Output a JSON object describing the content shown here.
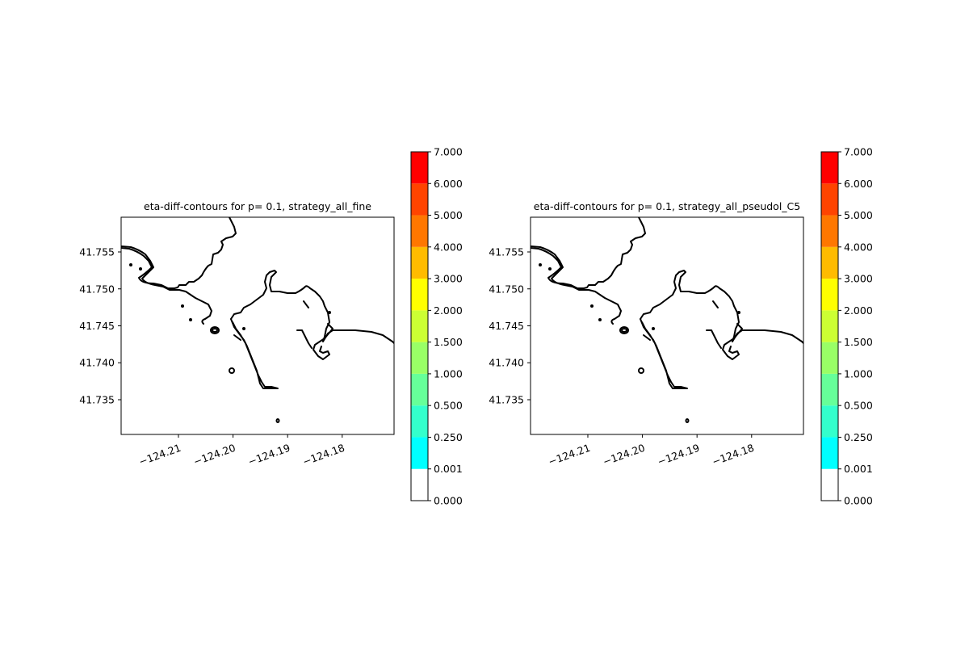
{
  "chart_data": [
    {
      "type": "contour",
      "title": "eta-diff-contours for p= 0.1, strategy_all_fine",
      "xlim": [
        -124.2205,
        -124.1705
      ],
      "ylim": [
        41.7303,
        41.7597
      ],
      "xticks": [
        -124.21,
        -124.2,
        -124.19,
        -124.18
      ],
      "xtick_labels": [
        "−124.21",
        "−124.20",
        "−124.19",
        "−124.18"
      ],
      "yticks": [
        41.735,
        41.74,
        41.745,
        41.75,
        41.755
      ],
      "ytick_labels": [
        "41.735",
        "41.740",
        "41.745",
        "41.750",
        "41.755"
      ],
      "filled_values": "none visible (all below 0.001)",
      "colorbar": {
        "levels": [
          0.0,
          0.001,
          0.25,
          0.5,
          1.0,
          1.5,
          2.0,
          3.0,
          4.0,
          5.0,
          6.0,
          7.0
        ],
        "labels": [
          "0.000",
          "0.001",
          "0.250",
          "0.500",
          "1.000",
          "1.500",
          "2.000",
          "3.000",
          "4.000",
          "5.000",
          "6.000",
          "7.000"
        ],
        "colors": [
          "#ffffff",
          "#00ffff",
          "#33ffcc",
          "#66ff99",
          "#99ff66",
          "#ccff33",
          "#ffff00",
          "#ffbb00",
          "#ff7700",
          "#ff4400",
          "#ff0000"
        ]
      }
    },
    {
      "type": "contour",
      "title": "eta-diff-contours for p= 0.1, strategy_all_pseudol_C5",
      "xlim": [
        -124.2205,
        -124.1705
      ],
      "ylim": [
        41.7303,
        41.7597
      ],
      "xticks": [
        -124.21,
        -124.2,
        -124.19,
        -124.18
      ],
      "xtick_labels": [
        "−124.21",
        "−124.20",
        "−124.19",
        "−124.18"
      ],
      "yticks": [
        41.735,
        41.74,
        41.745,
        41.75,
        41.755
      ],
      "ytick_labels": [
        "41.735",
        "41.740",
        "41.745",
        "41.750",
        "41.755"
      ],
      "filled_values": "none visible (all below 0.001)",
      "colorbar": {
        "levels": [
          0.0,
          0.001,
          0.25,
          0.5,
          1.0,
          1.5,
          2.0,
          3.0,
          4.0,
          5.0,
          6.0,
          7.0
        ],
        "labels": [
          "0.000",
          "0.001",
          "0.250",
          "0.500",
          "1.000",
          "1.500",
          "2.000",
          "3.000",
          "4.000",
          "5.000",
          "6.000",
          "7.000"
        ],
        "colors": [
          "#ffffff",
          "#00ffff",
          "#33ffcc",
          "#66ff99",
          "#99ff66",
          "#ccff33",
          "#ffff00",
          "#ffbb00",
          "#ff7700",
          "#ff4400",
          "#ff0000"
        ]
      }
    }
  ]
}
